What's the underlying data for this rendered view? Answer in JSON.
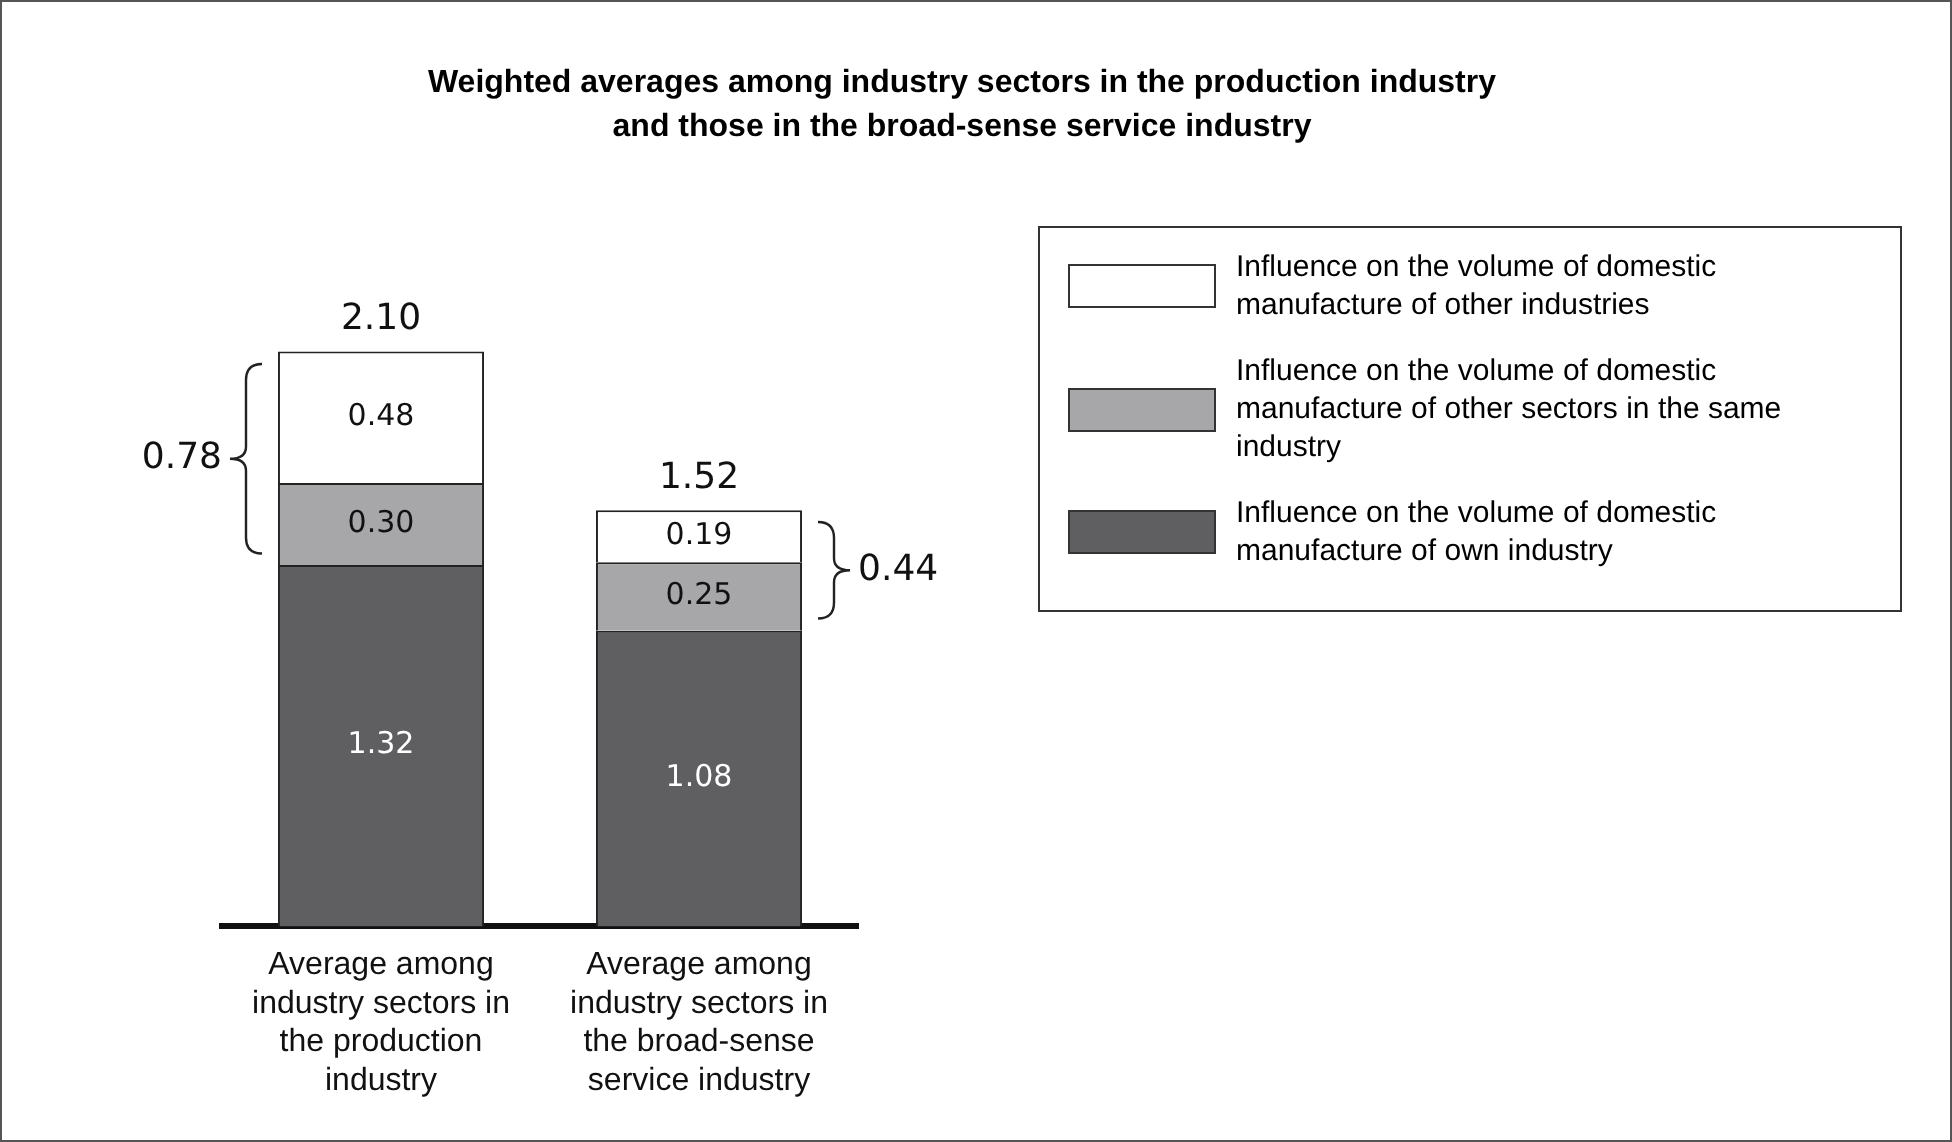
{
  "chart_data": {
    "type": "bar",
    "title": "Weighted averages among industry sectors in the production industry and those in the broad-sense service industry",
    "categories": [
      "Average among industry sectors in the production industry",
      "Average among industry sectors in the broad-sense service industry"
    ],
    "stacked": true,
    "series": [
      {
        "name": "Influence on the volume of domestic manufacture of own industry",
        "color": "#5f5f62",
        "values": [
          1.32,
          1.08
        ],
        "value_labels": [
          "1.32",
          "1.08"
        ]
      },
      {
        "name": "Influence on the volume of domestic manufacture of other sectors in the same industry",
        "color": "#a7a7a9",
        "values": [
          0.3,
          0.25
        ],
        "value_labels": [
          "0.30",
          "0.25"
        ]
      },
      {
        "name": "Influence on the volume of domestic manufacture of other industries",
        "color": "#ffffff",
        "values": [
          0.48,
          0.19
        ],
        "value_labels": [
          "0.48",
          "0.19"
        ]
      }
    ],
    "totals": [
      "2.10",
      "1.52"
    ],
    "annotations": [
      "0.78",
      "0.44"
    ],
    "tick_labels": "x",
    "legend": "top right"
  }
}
